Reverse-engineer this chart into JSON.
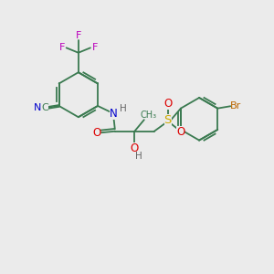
{
  "background_color": "#EBEBEB",
  "bond_color": "#3a7a50",
  "colors": {
    "C": "#3a7a50",
    "N": "#0000cc",
    "F": "#bb00bb",
    "O": "#dd0000",
    "S": "#ccaa00",
    "Br": "#bb6600",
    "H": "#666666"
  },
  "figsize": [
    3.0,
    3.0
  ],
  "dpi": 100
}
